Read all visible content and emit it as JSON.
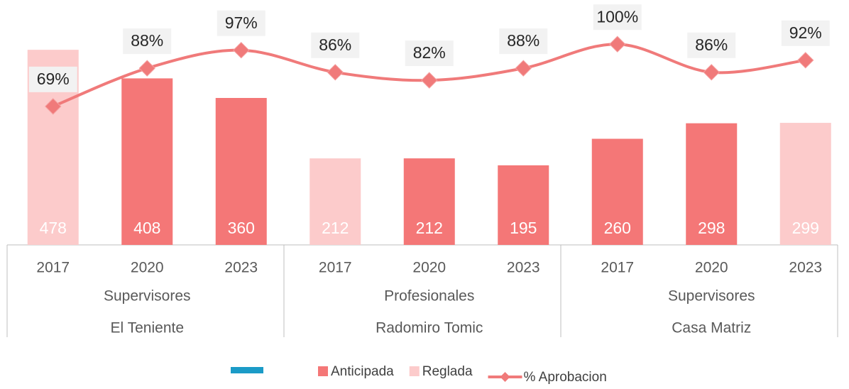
{
  "chart_data": {
    "type": "bar-line",
    "categories": [
      "2017",
      "2020",
      "2023",
      "2017",
      "2020",
      "2023",
      "2017",
      "2020",
      "2023"
    ],
    "groups": [
      [
        "Supervisores",
        "El Teniente"
      ],
      [
        "Profesionales",
        "Radomiro Tomic"
      ],
      [
        "Supervisores",
        "Casa Matriz"
      ]
    ],
    "series": [
      {
        "name": "Anticipada",
        "color": "#f47777",
        "values": [
          null,
          408,
          360,
          null,
          212,
          195,
          260,
          298,
          null
        ]
      },
      {
        "name": "Reglada",
        "color": "#fccbcb",
        "values": [
          478,
          null,
          null,
          212,
          null,
          null,
          null,
          null,
          299
        ]
      },
      {
        "name": "% Aprobacion",
        "color": "#f07a7a",
        "axis": "y2",
        "values": [
          69,
          88,
          97,
          86,
          82,
          88,
          100,
          86,
          92
        ],
        "value_labels": [
          "69%",
          "88%",
          "97%",
          "86%",
          "82%",
          "88%",
          "100%",
          "86%",
          "92%"
        ]
      }
    ],
    "ylim": [
      0,
      600
    ],
    "y2lim": [
      0,
      122
    ]
  }
}
